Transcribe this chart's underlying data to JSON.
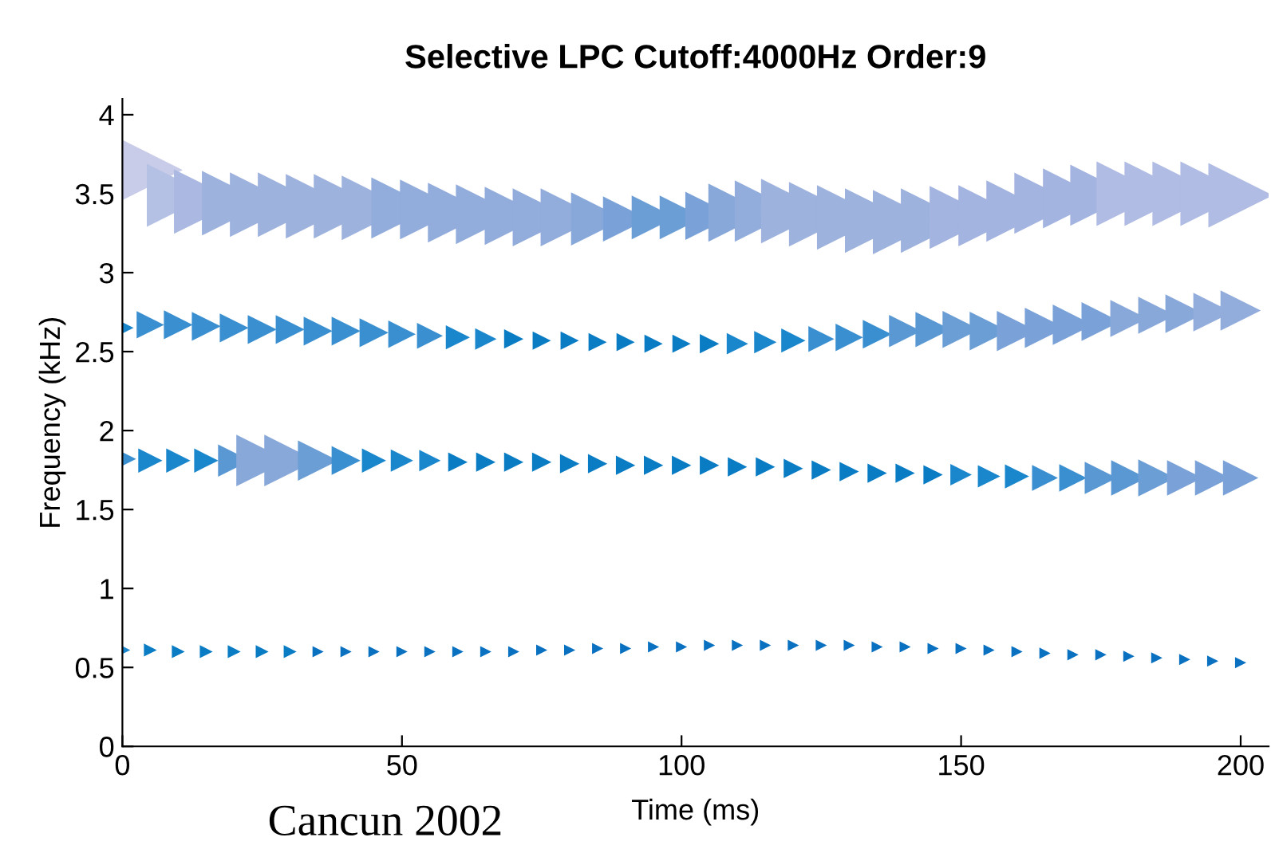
{
  "chart_data": {
    "type": "bubble",
    "title": "Selective LPC Cutoff:4000Hz Order:9",
    "xlabel": "Time (ms)",
    "ylabel": "Frequency (kHz)",
    "annotations": [
      "Cancun 2002"
    ],
    "x": [
      0,
      5,
      10,
      15,
      20,
      25,
      30,
      35,
      40,
      45,
      50,
      55,
      60,
      65,
      70,
      75,
      80,
      85,
      90,
      95,
      100,
      105,
      110,
      115,
      120,
      125,
      130,
      135,
      140,
      145,
      150,
      155,
      160,
      165,
      170,
      175,
      180,
      185,
      190,
      195,
      200
    ],
    "xlim": [
      0,
      205
    ],
    "ylim": [
      0,
      4.1
    ],
    "xticks": [
      0,
      50,
      100,
      150,
      200
    ],
    "yticks": [
      0,
      0.5,
      1,
      1.5,
      2,
      2.5,
      3,
      3.5,
      4
    ],
    "grid": false,
    "legend": false,
    "marker": "triangle",
    "series": [
      {
        "values": [
          0.61,
          0.61,
          0.6,
          0.6,
          0.6,
          0.6,
          0.6,
          0.6,
          0.6,
          0.6,
          0.6,
          0.6,
          0.6,
          0.6,
          0.6,
          0.61,
          0.61,
          0.62,
          0.62,
          0.63,
          0.63,
          0.64,
          0.64,
          0.64,
          0.64,
          0.64,
          0.64,
          0.63,
          0.63,
          0.62,
          0.62,
          0.61,
          0.6,
          0.59,
          0.58,
          0.58,
          0.57,
          0.56,
          0.55,
          0.54,
          0.53
        ],
        "sizes": [
          0.06,
          0.04,
          0.04,
          0.04,
          0.04,
          0.04,
          0.04,
          0.03,
          0.03,
          0.03,
          0.03,
          0.03,
          0.03,
          0.03,
          0.03,
          0.03,
          0.03,
          0.03,
          0.03,
          0.03,
          0.03,
          0.03,
          0.03,
          0.03,
          0.03,
          0.03,
          0.03,
          0.03,
          0.03,
          0.03,
          0.03,
          0.03,
          0.03,
          0.03,
          0.03,
          0.03,
          0.03,
          0.03,
          0.03,
          0.03,
          0.03
        ],
        "colors": [
          "#1a86cc",
          "#0a7cc4",
          "#0a7cc4",
          "#0a7cc4",
          "#0a7cc4",
          "#0a7cc4",
          "#0a7cc4",
          "#0a70c0",
          "#0a70c0",
          "#0a70c0",
          "#0a70c0",
          "#0a70c0",
          "#0a70c0",
          "#0a70c0",
          "#0a70c0",
          "#0a70c0",
          "#0a70c0",
          "#0a70c0",
          "#0a70c0",
          "#0a70c0",
          "#0a70c0",
          "#0a70c0",
          "#0a70c0",
          "#0a70c0",
          "#0a70c0",
          "#0a70c0",
          "#0a70c0",
          "#0a70c0",
          "#0a70c0",
          "#0a70c0",
          "#0a70c0",
          "#0a70c0",
          "#0a70c0",
          "#0a70c0",
          "#0a70c0",
          "#0a70c0",
          "#0a70c0",
          "#0a70c0",
          "#0a70c0",
          "#0a70c0",
          "#0a70c0"
        ]
      },
      {
        "values": [
          1.82,
          1.81,
          1.81,
          1.81,
          1.81,
          1.81,
          1.81,
          1.81,
          1.81,
          1.81,
          1.81,
          1.81,
          1.8,
          1.8,
          1.8,
          1.8,
          1.79,
          1.79,
          1.78,
          1.78,
          1.78,
          1.78,
          1.77,
          1.77,
          1.76,
          1.75,
          1.74,
          1.73,
          1.73,
          1.72,
          1.72,
          1.71,
          1.71,
          1.7,
          1.7,
          1.7,
          1.7,
          1.7,
          1.7,
          1.7,
          1.7
        ],
        "sizes": [
          0.18,
          0.14,
          0.14,
          0.14,
          0.25,
          0.64,
          0.64,
          0.39,
          0.2,
          0.14,
          0.12,
          0.11,
          0.09,
          0.09,
          0.09,
          0.09,
          0.09,
          0.09,
          0.09,
          0.09,
          0.09,
          0.09,
          0.09,
          0.09,
          0.09,
          0.09,
          0.09,
          0.09,
          0.09,
          0.09,
          0.11,
          0.12,
          0.14,
          0.16,
          0.18,
          0.25,
          0.3,
          0.33,
          0.3,
          0.3,
          0.3
        ],
        "colors": [
          "#3a8fd0",
          "#1a86cc",
          "#1a86cc",
          "#1a86cc",
          "#5a98d4",
          "#88a8da",
          "#88a8da",
          "#6c9ed6",
          "#3a8fd0",
          "#1a86cc",
          "#1a86cc",
          "#1a86cc",
          "#0a7cc4",
          "#0a7cc4",
          "#0a7cc4",
          "#0a7cc4",
          "#0a7cc4",
          "#0a7cc4",
          "#0a7cc4",
          "#0a7cc4",
          "#0a7cc4",
          "#0a7cc4",
          "#0a7cc4",
          "#0a7cc4",
          "#0a7cc4",
          "#0a7cc4",
          "#0a7cc4",
          "#0a7cc4",
          "#0a7cc4",
          "#0a7cc4",
          "#1a86cc",
          "#1a86cc",
          "#1a86cc",
          "#3a8fd0",
          "#3a8fd0",
          "#5a98d4",
          "#5a98d4",
          "#6c9ed6",
          "#7aa2d8",
          "#7aa2d8",
          "#7aa2d8"
        ]
      },
      {
        "values": [
          2.65,
          2.67,
          2.67,
          2.66,
          2.65,
          2.64,
          2.64,
          2.63,
          2.63,
          2.62,
          2.61,
          2.6,
          2.59,
          2.58,
          2.58,
          2.57,
          2.57,
          2.56,
          2.56,
          2.55,
          2.55,
          2.55,
          2.55,
          2.56,
          2.57,
          2.58,
          2.59,
          2.61,
          2.63,
          2.64,
          2.64,
          2.63,
          2.63,
          2.65,
          2.67,
          2.69,
          2.71,
          2.73,
          2.74,
          2.75,
          2.76
        ],
        "sizes": [
          0.12,
          0.18,
          0.2,
          0.2,
          0.2,
          0.2,
          0.2,
          0.2,
          0.2,
          0.2,
          0.18,
          0.16,
          0.14,
          0.11,
          0.09,
          0.08,
          0.08,
          0.08,
          0.08,
          0.08,
          0.08,
          0.09,
          0.11,
          0.12,
          0.14,
          0.16,
          0.18,
          0.2,
          0.25,
          0.3,
          0.33,
          0.36,
          0.39,
          0.39,
          0.39,
          0.36,
          0.33,
          0.33,
          0.36,
          0.36,
          0.39
        ],
        "colors": [
          "#1a86cc",
          "#3a8fd0",
          "#3a8fd0",
          "#3a8fd0",
          "#3a8fd0",
          "#3a8fd0",
          "#3a8fd0",
          "#3a8fd0",
          "#3a8fd0",
          "#3a8fd0",
          "#3a8fd0",
          "#3a8fd0",
          "#1a86cc",
          "#1a86cc",
          "#0a7cc4",
          "#0a7cc4",
          "#0a7cc4",
          "#0a7cc4",
          "#0a7cc4",
          "#0a7cc4",
          "#0a7cc4",
          "#0a7cc4",
          "#1a86cc",
          "#1a86cc",
          "#1a86cc",
          "#3a8fd0",
          "#3a8fd0",
          "#3a8fd0",
          "#5a98d4",
          "#5a98d4",
          "#6c9ed6",
          "#6c9ed6",
          "#7aa2d8",
          "#7aa2d8",
          "#7aa2d8",
          "#7aa2d8",
          "#88a8da",
          "#88a8da",
          "#88a8da",
          "#92acdc",
          "#92acdc"
        ]
      },
      {
        "values": [
          null,
          3.65,
          3.49,
          3.45,
          3.44,
          3.43,
          3.43,
          3.42,
          3.42,
          3.41,
          3.41,
          3.4,
          3.38,
          3.37,
          3.36,
          3.35,
          3.35,
          3.34,
          3.34,
          3.35,
          3.35,
          3.36,
          3.38,
          3.39,
          3.39,
          3.37,
          3.35,
          3.33,
          3.32,
          3.33,
          3.35,
          3.36,
          3.39,
          3.44,
          3.47,
          3.49,
          3.5,
          3.5,
          3.5,
          3.5,
          3.49
        ],
        "sizes": [
          null,
          1,
          0.95,
          1,
          1,
          1,
          1,
          1,
          1,
          1,
          0.9,
          0.86,
          0.86,
          0.86,
          0.81,
          0.81,
          0.81,
          0.68,
          0.49,
          0.46,
          0.46,
          0.56,
          0.81,
          0.9,
          1,
          1,
          1,
          1,
          1,
          1,
          0.95,
          0.9,
          0.9,
          0.9,
          0.86,
          0.9,
          1,
          1,
          1,
          1,
          1
        ],
        "colors": [
          null,
          "#c8cce8",
          "#b4c0e4",
          "#aab8e2",
          "#9eb2de",
          "#9eb2de",
          "#9eb2de",
          "#9eb2de",
          "#9eb2de",
          "#9eb2de",
          "#92acdc",
          "#92acdc",
          "#92acdc",
          "#92acdc",
          "#92acdc",
          "#92acdc",
          "#92acdc",
          "#88a8da",
          "#7aa2d8",
          "#6c9ed6",
          "#6c9ed6",
          "#7aa2d8",
          "#88a8da",
          "#92acdc",
          "#9eb2de",
          "#9eb2de",
          "#9eb2de",
          "#9eb2de",
          "#9eb2de",
          "#9eb2de",
          "#a4b4e0",
          "#a4b4e0",
          "#a4b4e0",
          "#a4b4e0",
          "#a4b4e0",
          "#a4b4e0",
          "#b0bce4",
          "#b0bce4",
          "#b0bce4",
          "#b0bce4",
          "#b0bce4"
        ]
      }
    ]
  }
}
